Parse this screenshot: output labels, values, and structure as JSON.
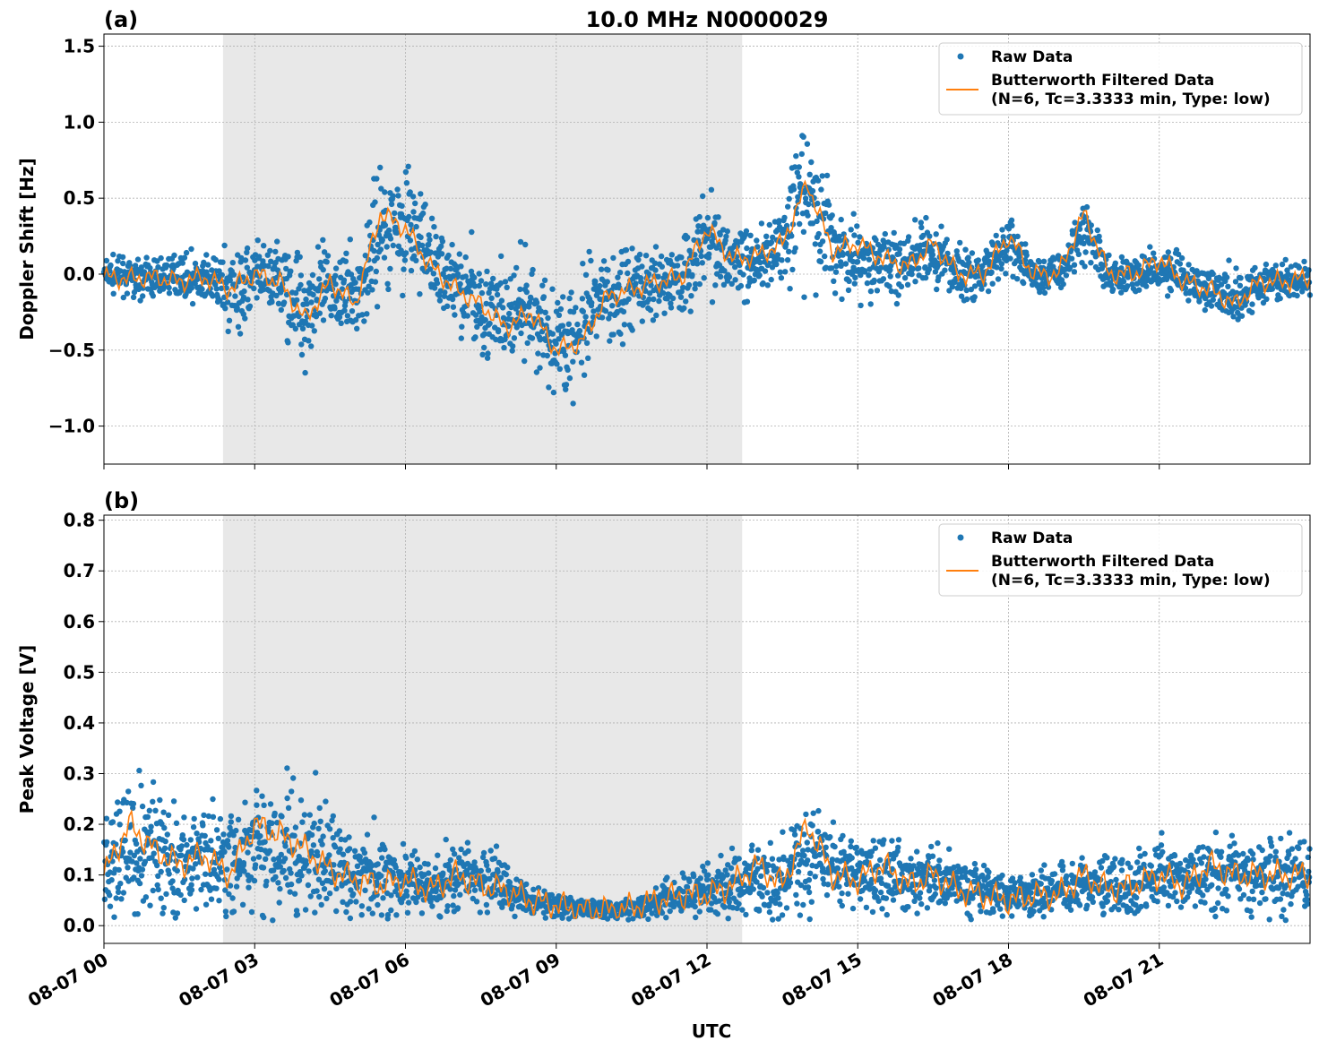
{
  "chart_data": [
    {
      "type": "scatter",
      "panel_label": "(a)",
      "title": "10.0 MHz N0000029",
      "ylabel": "Doppler Shift [Hz]",
      "xlabel": "",
      "xlim": [
        0,
        24
      ],
      "ylim": [
        -1.25,
        1.58
      ],
      "yticks": [
        -1.0,
        -0.5,
        0.0,
        0.5,
        1.0,
        1.5
      ],
      "ytick_labels": [
        "−1.0",
        "−0.5",
        "0.0",
        "0.5",
        "1.0",
        "1.5"
      ],
      "xticks": [
        0,
        3,
        6,
        9,
        12,
        15,
        18,
        21
      ],
      "grid": true,
      "legend_position": "top-right",
      "shaded_interval_hours": [
        2.37,
        12.7
      ],
      "series": [
        {
          "name": "Raw Data",
          "style": "points",
          "color": "#1f77b4",
          "x_hours": [
            0,
            0.5,
            1,
            1.5,
            2,
            2.5,
            3,
            3.5,
            4,
            4.5,
            5,
            5.5,
            6,
            6.5,
            7,
            7.5,
            8,
            8.5,
            9,
            9.5,
            10,
            10.5,
            11,
            11.5,
            12,
            12.5,
            13,
            13.5,
            14,
            14.5,
            15,
            15.5,
            16,
            16.5,
            17,
            17.5,
            18,
            18.5,
            19,
            19.5,
            20,
            20.5,
            21,
            21.5,
            22,
            22.5,
            23,
            23.5,
            24
          ],
          "center": [
            0.0,
            -0.02,
            -0.03,
            0.0,
            -0.05,
            -0.1,
            -0.05,
            -0.05,
            -0.2,
            -0.1,
            -0.15,
            0.3,
            0.35,
            0.1,
            -0.05,
            -0.2,
            -0.3,
            -0.25,
            -0.45,
            -0.4,
            -0.15,
            -0.1,
            -0.05,
            0.0,
            0.25,
            0.1,
            0.1,
            0.2,
            0.5,
            0.2,
            0.1,
            0.1,
            0.05,
            0.15,
            0.0,
            0.0,
            0.2,
            0.0,
            0.0,
            0.3,
            0.0,
            0.0,
            0.05,
            -0.05,
            -0.1,
            -0.15,
            -0.05,
            -0.05,
            -0.05
          ],
          "spread": [
            0.1,
            0.1,
            0.12,
            0.12,
            0.15,
            0.25,
            0.25,
            0.25,
            0.35,
            0.3,
            0.3,
            0.35,
            0.35,
            0.3,
            0.3,
            0.3,
            0.3,
            0.3,
            0.35,
            0.35,
            0.3,
            0.25,
            0.25,
            0.25,
            0.3,
            0.25,
            0.25,
            0.3,
            0.45,
            0.3,
            0.25,
            0.2,
            0.2,
            0.2,
            0.15,
            0.15,
            0.2,
            0.12,
            0.12,
            0.2,
            0.12,
            0.12,
            0.12,
            0.15,
            0.15,
            0.2,
            0.12,
            0.12,
            0.1
          ]
        },
        {
          "name": "Butterworth Filtered Data\n(N=6, Tc=3.3333 min, Type: low)",
          "style": "line",
          "color": "#ff7f0e",
          "x_hours": [
            0,
            0.5,
            1,
            1.5,
            2,
            2.5,
            3,
            3.5,
            4,
            4.5,
            5,
            5.5,
            6,
            6.5,
            7,
            7.5,
            8,
            8.5,
            9,
            9.5,
            10,
            10.5,
            11,
            11.5,
            12,
            12.5,
            13,
            13.5,
            14,
            14.5,
            15,
            15.5,
            16,
            16.5,
            17,
            17.5,
            18,
            18.5,
            19,
            19.5,
            20,
            20.5,
            21,
            21.5,
            22,
            22.5,
            23,
            23.5,
            24
          ],
          "y": [
            -0.02,
            -0.03,
            -0.02,
            -0.05,
            -0.02,
            -0.1,
            0.0,
            -0.05,
            -0.3,
            -0.05,
            -0.2,
            0.4,
            0.3,
            0.05,
            -0.1,
            -0.2,
            -0.35,
            -0.25,
            -0.5,
            -0.45,
            -0.15,
            -0.1,
            -0.05,
            -0.02,
            0.3,
            0.1,
            0.12,
            0.2,
            0.6,
            0.15,
            0.2,
            0.1,
            0.05,
            0.2,
            0.0,
            0.0,
            0.25,
            0.0,
            0.0,
            0.4,
            0.0,
            0.0,
            0.1,
            -0.05,
            -0.1,
            -0.2,
            -0.05,
            -0.05,
            -0.02
          ]
        }
      ]
    },
    {
      "type": "scatter",
      "panel_label": "(b)",
      "title": "",
      "ylabel": "Peak Voltage [V]",
      "xlabel": "UTC",
      "xlim": [
        0,
        24
      ],
      "ylim": [
        -0.035,
        0.81
      ],
      "yticks": [
        0.0,
        0.1,
        0.2,
        0.3,
        0.4,
        0.5,
        0.6,
        0.7,
        0.8
      ],
      "ytick_labels": [
        "0.0",
        "0.1",
        "0.2",
        "0.3",
        "0.4",
        "0.5",
        "0.6",
        "0.7",
        "0.8"
      ],
      "xticks": [
        0,
        3,
        6,
        9,
        12,
        15,
        18,
        21
      ],
      "xtick_labels": [
        "08-07 00",
        "08-07 03",
        "08-07 06",
        "08-07 09",
        "08-07 12",
        "08-07 15",
        "08-07 18",
        "08-07 21"
      ],
      "grid": true,
      "legend_position": "top-right",
      "shaded_interval_hours": [
        2.37,
        12.7
      ],
      "series": [
        {
          "name": "Raw Data",
          "style": "points",
          "color": "#1f77b4",
          "x_hours": [
            0,
            0.5,
            1,
            1.5,
            2,
            2.5,
            3,
            3.5,
            4,
            4.5,
            5,
            5.5,
            6,
            6.5,
            7,
            7.5,
            8,
            8.5,
            9,
            9.5,
            10,
            10.5,
            11,
            11.5,
            12,
            12.5,
            13,
            13.5,
            14,
            14.5,
            15,
            15.5,
            16,
            16.5,
            17,
            17.5,
            18,
            18.5,
            19,
            19.5,
            20,
            20.5,
            21,
            21.5,
            22,
            22.5,
            23,
            23.5,
            24
          ],
          "center": [
            0.12,
            0.15,
            0.15,
            0.13,
            0.13,
            0.12,
            0.15,
            0.15,
            0.14,
            0.12,
            0.1,
            0.1,
            0.09,
            0.08,
            0.1,
            0.09,
            0.08,
            0.05,
            0.04,
            0.035,
            0.03,
            0.035,
            0.05,
            0.06,
            0.07,
            0.08,
            0.1,
            0.09,
            0.15,
            0.12,
            0.1,
            0.1,
            0.09,
            0.1,
            0.08,
            0.07,
            0.06,
            0.06,
            0.07,
            0.08,
            0.08,
            0.08,
            0.1,
            0.09,
            0.1,
            0.1,
            0.1,
            0.1,
            0.1
          ],
          "spread": [
            0.1,
            0.12,
            0.12,
            0.1,
            0.1,
            0.1,
            0.12,
            0.12,
            0.12,
            0.1,
            0.08,
            0.08,
            0.07,
            0.06,
            0.07,
            0.06,
            0.05,
            0.03,
            0.02,
            0.02,
            0.02,
            0.02,
            0.03,
            0.04,
            0.05,
            0.06,
            0.08,
            0.07,
            0.1,
            0.08,
            0.07,
            0.07,
            0.06,
            0.06,
            0.05,
            0.05,
            0.04,
            0.04,
            0.05,
            0.05,
            0.06,
            0.06,
            0.07,
            0.06,
            0.07,
            0.07,
            0.07,
            0.07,
            0.07
          ]
        },
        {
          "name": "Butterworth Filtered Data\n(N=6, Tc=3.3333 min, Type: low)",
          "style": "line",
          "color": "#ff7f0e",
          "x_hours": [
            0,
            0.5,
            1,
            1.5,
            2,
            2.5,
            3,
            3.5,
            4,
            4.5,
            5,
            5.5,
            6,
            6.5,
            7,
            7.5,
            8,
            8.5,
            9,
            9.5,
            10,
            10.5,
            11,
            11.5,
            12,
            12.5,
            13,
            13.5,
            14,
            14.5,
            15,
            15.5,
            16,
            16.5,
            17,
            17.5,
            18,
            18.5,
            19,
            19.5,
            20,
            20.5,
            21,
            21.5,
            22,
            22.5,
            23,
            23.5,
            24
          ],
          "y": [
            0.1,
            0.2,
            0.15,
            0.12,
            0.14,
            0.1,
            0.2,
            0.18,
            0.15,
            0.11,
            0.09,
            0.08,
            0.09,
            0.07,
            0.1,
            0.08,
            0.07,
            0.05,
            0.04,
            0.03,
            0.03,
            0.035,
            0.05,
            0.06,
            0.06,
            0.08,
            0.12,
            0.08,
            0.2,
            0.1,
            0.09,
            0.12,
            0.08,
            0.1,
            0.07,
            0.06,
            0.05,
            0.06,
            0.06,
            0.1,
            0.07,
            0.08,
            0.1,
            0.08,
            0.12,
            0.1,
            0.1,
            0.1,
            0.1
          ]
        }
      ]
    }
  ],
  "legend": {
    "raw_label": "Raw Data",
    "filtered_line1": "Butterworth Filtered Data",
    "filtered_line2": "(N=6, Tc=3.3333 min, Type: low)"
  }
}
